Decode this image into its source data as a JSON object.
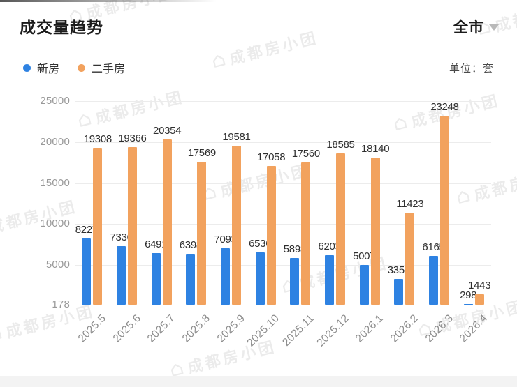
{
  "header": {
    "title": "成交量趋势",
    "region": "全市",
    "unit": "单位：套"
  },
  "watermark": {
    "text": "成都房小团"
  },
  "chart_data": {
    "type": "bar",
    "title": "成交量趋势",
    "unit": "套",
    "region_filter": "全市",
    "categories": [
      "2025.5",
      "2025.6",
      "2025.7",
      "2025.8",
      "2025.9",
      "2025.10",
      "2025.11",
      "2025.12",
      "2026.1",
      "2026.2",
      "2026.3",
      "2026.4"
    ],
    "series": [
      {
        "name": "新房",
        "color": "#2E82E2",
        "values": [
          8227,
          7336,
          6491,
          6398,
          7093,
          6536,
          5898,
          6203,
          5007,
          3354,
          6165,
          298
        ]
      },
      {
        "name": "二手房",
        "color": "#F2A25E",
        "values": [
          19308,
          19366,
          20354,
          17569,
          19581,
          17058,
          17560,
          18585,
          18140,
          11423,
          23248,
          1443
        ]
      }
    ],
    "y_axis": {
      "min": 178,
      "max": 25000,
      "ticks": [
        25000,
        20000,
        15000,
        10000,
        5000,
        178
      ]
    },
    "grid": true,
    "value_labels": true,
    "legend_position": "top-left",
    "x_label_rotation": -45
  }
}
